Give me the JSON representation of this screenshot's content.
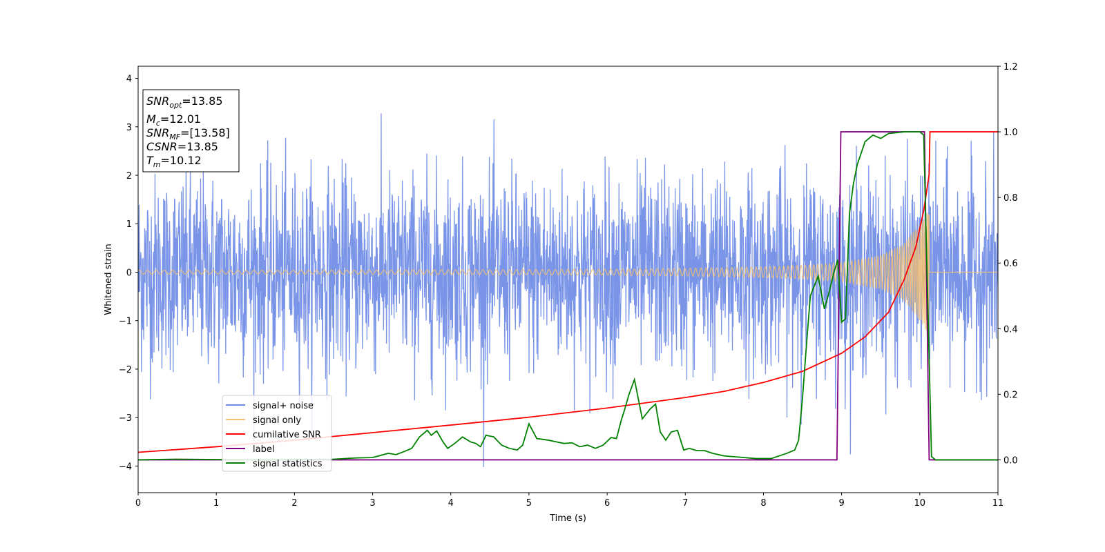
{
  "chart_data": {
    "type": "line",
    "xlabel": "Time (s)",
    "ylabel": "Whitened strain",
    "xlim": [
      0,
      11
    ],
    "ylim": [
      -4.55,
      4.25
    ],
    "y2lim": [
      -0.1,
      1.2
    ],
    "x_ticks": [
      0,
      1,
      2,
      3,
      4,
      5,
      6,
      7,
      8,
      9,
      10,
      11
    ],
    "y_ticks": [
      -4,
      -3,
      -2,
      -1,
      0,
      1,
      2,
      3,
      4
    ],
    "y2_ticks": [
      0.0,
      0.2,
      0.4,
      0.6,
      0.8,
      1.0,
      1.2
    ],
    "x_tick_labels": [
      "0",
      "1",
      "2",
      "3",
      "4",
      "5",
      "6",
      "7",
      "8",
      "9",
      "10",
      "11"
    ],
    "y_tick_labels": [
      "−4",
      "−3",
      "−2",
      "−1",
      "0",
      "1",
      "2",
      "3",
      "4"
    ],
    "y2_tick_labels": [
      "0.0",
      "0.2",
      "0.4",
      "0.6",
      "0.8",
      "1.0",
      "1.2"
    ],
    "legend_position": "lower-left",
    "info_box": {
      "lines": [
        {
          "sym": "SNR",
          "sub": "opt",
          "value": "=13.85"
        },
        {
          "sym": "M",
          "sub": "c",
          "value": "=12.01"
        },
        {
          "sym": "SNR",
          "sub": "MF",
          "value": "=[13.58]"
        },
        {
          "sym": "CSNR",
          "sub": "",
          "value": "=13.85"
        },
        {
          "sym": "T",
          "sub": "m",
          "value": "=10.12"
        }
      ]
    },
    "series": [
      {
        "name": "signal+ noise",
        "color": "#6b8ae6",
        "axis": "left",
        "description_of_values": "Gaussian-like whitened noise, approx. amplitude range -4.2 to 3.7 over 0-11 s"
      },
      {
        "name": "signal only",
        "color": "#f5c170",
        "axis": "left",
        "envelope": {
          "x": [
            0,
            2,
            4,
            6,
            7,
            8,
            8.5,
            9,
            9.5,
            9.8,
            10.0,
            10.12
          ],
          "amp": [
            0.04,
            0.04,
            0.05,
            0.06,
            0.08,
            0.11,
            0.14,
            0.2,
            0.35,
            0.6,
            1.0,
            1.3
          ]
        },
        "end": 10.12
      },
      {
        "name": "cumilative SNR",
        "color": "#ff0000",
        "axis": "right",
        "x": [
          0,
          1,
          2,
          3,
          4,
          5,
          6,
          7,
          7.5,
          8,
          8.5,
          9,
          9.3,
          9.6,
          9.8,
          9.95,
          10.05,
          10.12,
          10.13,
          11
        ],
        "y": [
          0.023,
          0.04,
          0.06,
          0.083,
          0.106,
          0.13,
          0.158,
          0.19,
          0.209,
          0.236,
          0.27,
          0.325,
          0.375,
          0.45,
          0.55,
          0.65,
          0.76,
          0.87,
          1.0,
          1.0
        ]
      },
      {
        "name": "label",
        "color": "#800080",
        "axis": "right",
        "x": [
          0,
          8.94,
          8.99,
          10.06,
          10.12,
          11
        ],
        "y": [
          0,
          0,
          1,
          1,
          0,
          0
        ]
      },
      {
        "name": "signal statistics",
        "color": "#008000",
        "axis": "right",
        "x": [
          0,
          0.5,
          1,
          1.5,
          2,
          2.5,
          2.8,
          3.0,
          3.2,
          3.3,
          3.4,
          3.5,
          3.6,
          3.7,
          3.75,
          3.82,
          3.9,
          3.96,
          4.05,
          4.15,
          4.25,
          4.32,
          4.38,
          4.45,
          4.55,
          4.65,
          4.75,
          4.85,
          4.92,
          5.0,
          5.1,
          5.25,
          5.35,
          5.45,
          5.55,
          5.65,
          5.75,
          5.85,
          5.95,
          6.05,
          6.12,
          6.18,
          6.22,
          6.28,
          6.35,
          6.45,
          6.55,
          6.62,
          6.68,
          6.75,
          6.82,
          6.9,
          6.98,
          7.05,
          7.15,
          7.25,
          7.35,
          7.5,
          7.7,
          7.9,
          8.1,
          8.3,
          8.4,
          8.45,
          8.5,
          8.55,
          8.6,
          8.65,
          8.7,
          8.78,
          8.85,
          8.9,
          8.95,
          9.0,
          9.05,
          9.1,
          9.15,
          9.2,
          9.3,
          9.4,
          9.5,
          9.6,
          9.8,
          10.0,
          10.05,
          10.1,
          10.15,
          10.2,
          10.4,
          10.6,
          11
        ],
        "y": [
          0.0,
          0.002,
          0.001,
          0.0,
          0.001,
          0.002,
          0.006,
          0.007,
          0.02,
          0.016,
          0.025,
          0.035,
          0.07,
          0.09,
          0.075,
          0.088,
          0.055,
          0.035,
          0.05,
          0.07,
          0.055,
          0.05,
          0.04,
          0.075,
          0.07,
          0.045,
          0.035,
          0.03,
          0.045,
          0.11,
          0.065,
          0.06,
          0.055,
          0.05,
          0.052,
          0.04,
          0.045,
          0.035,
          0.045,
          0.068,
          0.065,
          0.12,
          0.15,
          0.2,
          0.245,
          0.125,
          0.155,
          0.17,
          0.085,
          0.06,
          0.085,
          0.09,
          0.03,
          0.035,
          0.028,
          0.028,
          0.02,
          0.012,
          0.008,
          0.004,
          0.004,
          0.02,
          0.03,
          0.06,
          0.19,
          0.35,
          0.5,
          0.53,
          0.56,
          0.46,
          0.52,
          0.57,
          0.61,
          0.42,
          0.43,
          0.75,
          0.84,
          0.9,
          0.97,
          0.99,
          0.98,
          0.995,
          1.0,
          1.0,
          0.99,
          0.5,
          0.01,
          0.0,
          0.0,
          0.0,
          0.0
        ]
      }
    ]
  }
}
